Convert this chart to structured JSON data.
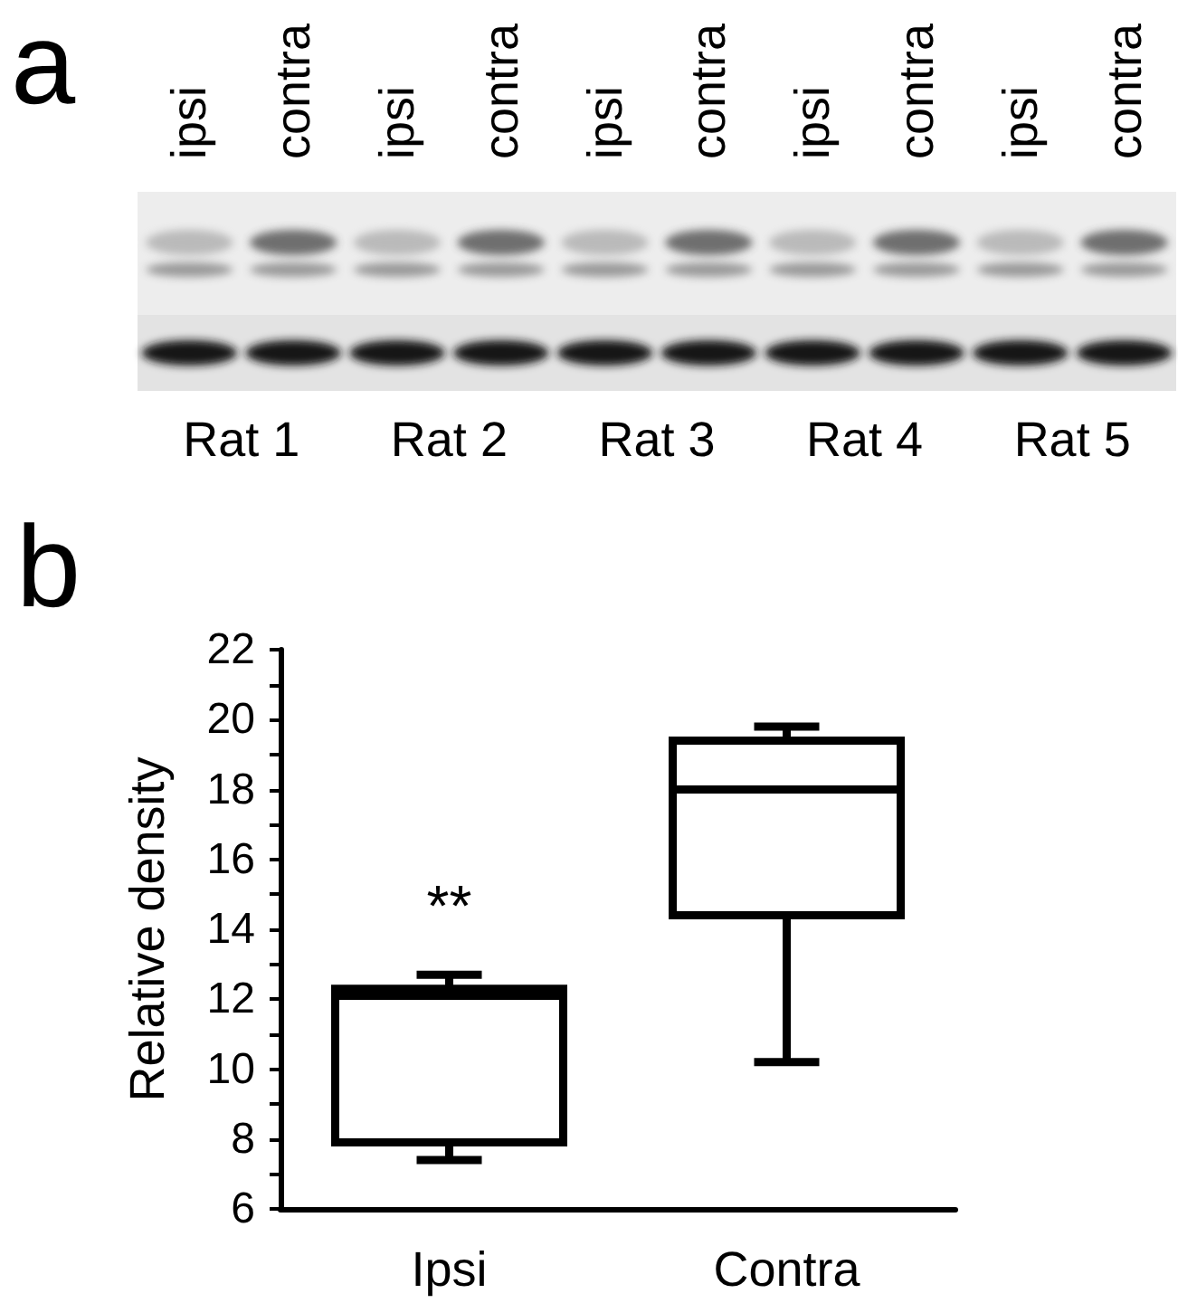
{
  "chart_data": [
    {
      "type": "other",
      "title": "a",
      "categories": [
        "ipsi",
        "contra",
        "ipsi",
        "contra",
        "ipsi",
        "contra",
        "ipsi",
        "contra",
        "ipsi",
        "contra"
      ],
      "annotations": [
        "Rat 1",
        "Rat 2",
        "Rat 3",
        "Rat 4",
        "Rat 5"
      ]
    },
    {
      "type": "box",
      "title": "b",
      "ylabel": "Relative density",
      "categories": [
        "Ipsi",
        "Contra"
      ],
      "series": [
        {
          "color": "#000000",
          "boxes": [
            {
              "low": 7.4,
              "q1": 7.9,
              "median": 12.1,
              "q3": 12.3,
              "high": 12.7
            },
            {
              "low": 10.2,
              "q1": 14.4,
              "median": 18.0,
              "q3": 19.4,
              "high": 19.8
            }
          ]
        }
      ],
      "ylim": [
        6,
        22
      ],
      "yticks": [
        6,
        {
          "value": 7,
          "label": null
        },
        8,
        {
          "value": 9,
          "label": null
        },
        10,
        {
          "value": 11,
          "label": null
        },
        12,
        {
          "value": 13,
          "label": null
        },
        14,
        {
          "value": 15,
          "label": null
        },
        16,
        {
          "value": 17,
          "label": null
        },
        18,
        {
          "value": 19,
          "label": null
        },
        20,
        {
          "value": 21,
          "label": null
        },
        22
      ],
      "annotations": [
        "**"
      ]
    }
  ]
}
